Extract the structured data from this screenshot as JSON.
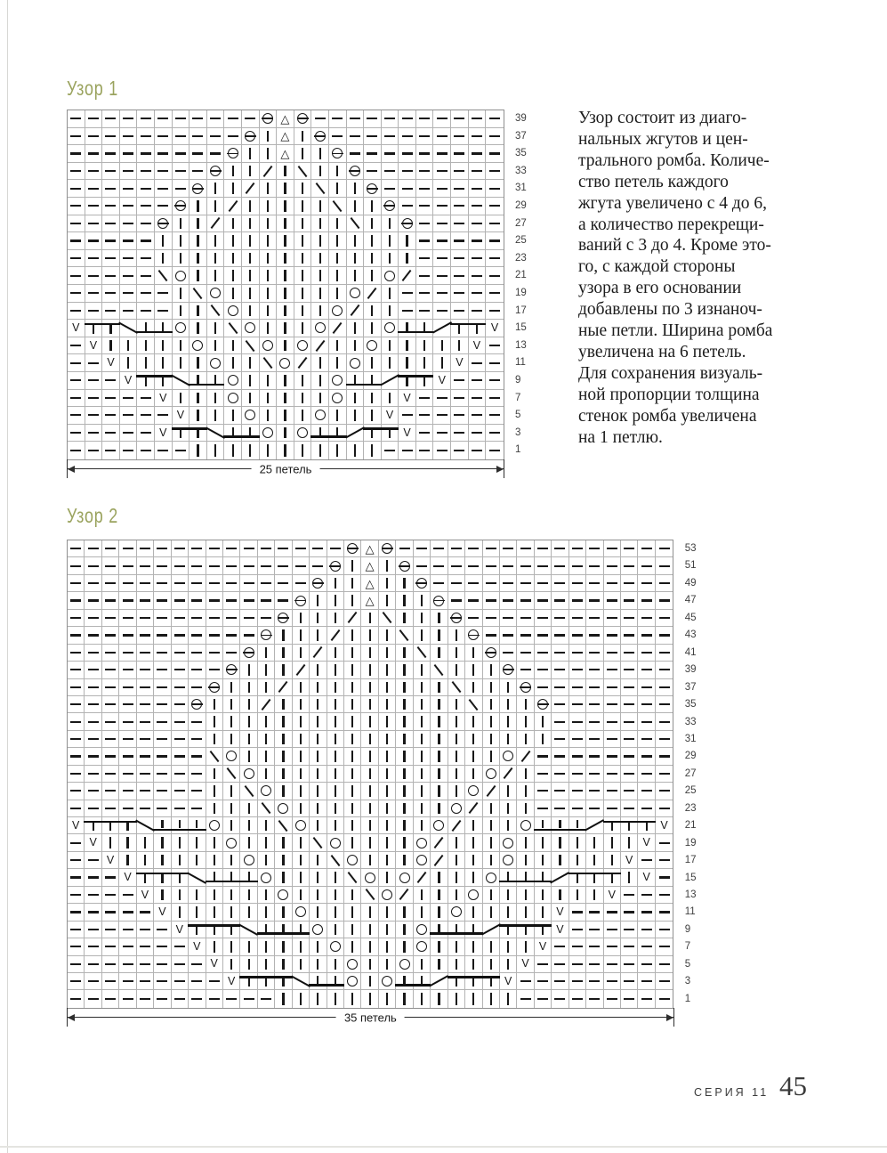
{
  "page": {
    "series_label": "СЕРИЯ 11",
    "page_number": "45"
  },
  "symbols": {
    "-": "purl",
    "i": "knit",
    "o": "yarn-over",
    "8": "circle-with-bar",
    "^": "triangle-decrease",
    "/": "right-leaning-decrease",
    "N": "left-leaning-decrease",
    "v": "slipped-stitch",
    "t": "cable-strand-top",
    "b": "cable-strand-bottom",
    "d": "cable-cross-down",
    "u": "cable-cross-up"
  },
  "chart_data": [
    {
      "type": "knitting-chart",
      "title": "Узор 1",
      "stitches": 25,
      "cell": 19.6,
      "stitch_label": "25 петель",
      "rows": [
        {
          "row": 39,
          "cells": "-----------8^8-----------"
        },
        {
          "row": 37,
          "cells": "----------8i^i8----------"
        },
        {
          "row": 35,
          "cells": "---------8ii^ii8---------"
        },
        {
          "row": 33,
          "cells": "--------8ii/iNii8--------"
        },
        {
          "row": 31,
          "cells": "-------8ii/iiiNii8-------"
        },
        {
          "row": 29,
          "cells": "------8ii/iiiiiNii8------"
        },
        {
          "row": 27,
          "cells": "-----8ii/iiiiiiiNii8-----"
        },
        {
          "row": 25,
          "cells": "-----iiiiiiiiiiiiiii-----"
        },
        {
          "row": 23,
          "cells": "-----iiiiiiiiiiiiiii-----"
        },
        {
          "row": 21,
          "cells": "-----Noiiiiiiiiiiio/-----"
        },
        {
          "row": 19,
          "cells": "------iNoiiiiiiio/i------"
        },
        {
          "row": 17,
          "cells": "------iiNoiiiiio/ii------"
        },
        {
          "row": 15,
          "cells": "vttdbboiiNoiiio/iiobbuttv"
        },
        {
          "row": 13,
          "cells": "-viiiiioiiNoio/iioiiiiiv-"
        },
        {
          "row": 11,
          "cells": "--viiiiioiiNo/iioiiiiiv--"
        },
        {
          "row": 9,
          "cells": "---vttdbboiiiiiobbuttv---"
        },
        {
          "row": 7,
          "cells": "-----viiioiiiiioiiiv-----"
        },
        {
          "row": 5,
          "cells": "------viiioiiioiiiv------"
        },
        {
          "row": 3,
          "cells": "-----vttdbboiobbuttv-----"
        },
        {
          "row": 1,
          "cells": "-------iiiiiiiiiii-------"
        }
      ]
    },
    {
      "type": "knitting-chart",
      "title": "Узор 2",
      "stitches": 35,
      "cell": 19.45,
      "stitch_label": "35 петель",
      "rows": [
        {
          "row": 53,
          "cells": "----------------8^8----------------"
        },
        {
          "row": 51,
          "cells": "---------------8i^i8---------------"
        },
        {
          "row": 49,
          "cells": "--------------8ii^ii8--------------"
        },
        {
          "row": 47,
          "cells": "-------------8iii^iii8-------------"
        },
        {
          "row": 45,
          "cells": "------------8iii/iNiii8------------"
        },
        {
          "row": 43,
          "cells": "-----------8iii/iiiNiii8-----------"
        },
        {
          "row": 41,
          "cells": "----------8iii/iiiiiNiii8----------"
        },
        {
          "row": 39,
          "cells": "---------8iii/iiiiiiiNiii8---------"
        },
        {
          "row": 37,
          "cells": "--------8iii/iiiiiiiiiNiii8--------"
        },
        {
          "row": 35,
          "cells": "-------8iii/iiiiiiiiiiiNiii8-------"
        },
        {
          "row": 33,
          "cells": "--------iiiiiiiiiiiiiiiiiiii-------"
        },
        {
          "row": 31,
          "cells": "--------iiiiiiiiiiiiiiiiiiii-------"
        },
        {
          "row": 29,
          "cells": "--------Noiiiiiiiiiiiiiiio/--------"
        },
        {
          "row": 27,
          "cells": "--------iNoiiiiiiiiiiiiio/i--------"
        },
        {
          "row": 25,
          "cells": "--------iiNoiiiiiiiiiiio/ii--------"
        },
        {
          "row": 23,
          "cells": "--------iiiNoiiiiiiiiio/iii--------"
        },
        {
          "row": 21,
          "cells": "vtttdbbboiiiNoiiiiiiio/iiiobbbutttv"
        },
        {
          "row": 19,
          "cells": "-viiiiiiioiiiiNoiiiio/iiioiiiiiiiv-"
        },
        {
          "row": 17,
          "cells": "--viiiiiiioiiiiNoiiio/iiioiiiiiiv--"
        },
        {
          "row": 15,
          "cells": "---vtttdbbboiiiiNoio/iiiobbbutttiv-"
        },
        {
          "row": 13,
          "cells": "----viiiiiiioiiiiNo/iiioiiiiiiiv---"
        },
        {
          "row": 11,
          "cells": "-----viiiiiiioiiiiiiiioiiiiiv------"
        },
        {
          "row": 9,
          "cells": "------vtttdbbboiiiiiobbbutttv------"
        },
        {
          "row": 7,
          "cells": "-------viiiiiiioiiiioiiiiiiv-------"
        },
        {
          "row": 5,
          "cells": "--------viiiiiiioiioiiiiiiv--------"
        },
        {
          "row": 3,
          "cells": "---------vtttdbboiobbutttv---------"
        },
        {
          "row": 1,
          "cells": "------------iiiiiiiiiiiiii---------"
        }
      ]
    }
  ],
  "description": {
    "lines": [
      "Узор состоит из диаго-",
      "нальных жгутов и цен-",
      "трального ромба. Количе-",
      "ство петель каждого",
      "жгута увеличено с 4 до 6,",
      "а количество перекрещи-",
      "ваний с 3 до 4. Кроме это-",
      "го, с каждой стороны",
      "узора в его основании",
      "добавлены по 3 изнаноч-",
      "ные петли. Ширина ромба",
      "увеличена на 6 петель.",
      "Для сохранения визуаль-",
      "ной пропорции толщина",
      "стенок ромба увеличена",
      "на 1 петлю."
    ]
  }
}
